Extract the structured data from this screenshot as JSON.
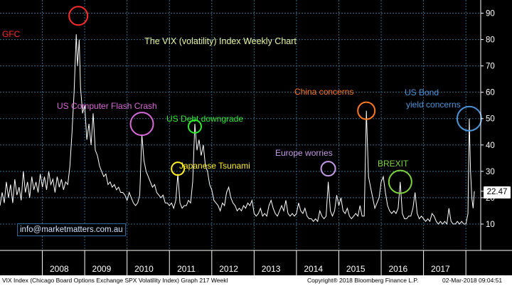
{
  "chart_data": {
    "type": "line",
    "title": "The VIX (volatility) Index Weekly Chart",
    "x_axis_labels": [
      "2008",
      "2009",
      "2010",
      "2011",
      "2012",
      "2013",
      "2014",
      "2015",
      "2016",
      "2017"
    ],
    "y_ticks": [
      10,
      20,
      30,
      40,
      50,
      60,
      70,
      80,
      90
    ],
    "ylim": [
      0,
      95
    ],
    "grid": true,
    "series": [
      {
        "values": [
          [
            2007.0,
            17
          ],
          [
            2007.05,
            22
          ],
          [
            2007.1,
            18
          ],
          [
            2007.15,
            26
          ],
          [
            2007.2,
            20
          ],
          [
            2007.25,
            25
          ],
          [
            2007.3,
            18
          ],
          [
            2007.35,
            27
          ],
          [
            2007.4,
            21
          ],
          [
            2007.45,
            24
          ],
          [
            2007.5,
            19
          ],
          [
            2007.55,
            30
          ],
          [
            2007.6,
            22
          ],
          [
            2007.65,
            26
          ],
          [
            2007.7,
            20
          ],
          [
            2007.75,
            28
          ],
          [
            2007.8,
            23
          ],
          [
            2007.85,
            26
          ],
          [
            2007.9,
            22
          ],
          [
            2007.95,
            29
          ],
          [
            2008.0,
            24
          ],
          [
            2008.05,
            28
          ],
          [
            2008.1,
            23
          ],
          [
            2008.15,
            30
          ],
          [
            2008.2,
            25
          ],
          [
            2008.25,
            27
          ],
          [
            2008.3,
            22
          ],
          [
            2008.35,
            28
          ],
          [
            2008.4,
            24
          ],
          [
            2008.45,
            27
          ],
          [
            2008.5,
            23
          ],
          [
            2008.55,
            26
          ],
          [
            2008.6,
            25
          ],
          [
            2008.65,
            32
          ],
          [
            2008.7,
            45
          ],
          [
            2008.75,
            60
          ],
          [
            2008.8,
            82
          ],
          [
            2008.83,
            70
          ],
          [
            2008.87,
            80
          ],
          [
            2008.9,
            62
          ],
          [
            2008.95,
            52
          ],
          [
            2009.0,
            55
          ],
          [
            2009.05,
            42
          ],
          [
            2009.1,
            48
          ],
          [
            2009.15,
            40
          ],
          [
            2009.2,
            52
          ],
          [
            2009.25,
            38
          ],
          [
            2009.3,
            36
          ],
          [
            2009.35,
            32
          ],
          [
            2009.4,
            30
          ],
          [
            2009.45,
            28
          ],
          [
            2009.5,
            29
          ],
          [
            2009.55,
            25
          ],
          [
            2009.6,
            26
          ],
          [
            2009.65,
            24
          ],
          [
            2009.7,
            25
          ],
          [
            2009.75,
            23
          ],
          [
            2009.8,
            24
          ],
          [
            2009.85,
            22
          ],
          [
            2009.9,
            22
          ],
          [
            2009.95,
            21
          ],
          [
            2010.0,
            19
          ],
          [
            2010.05,
            22
          ],
          [
            2010.1,
            20
          ],
          [
            2010.15,
            18
          ],
          [
            2010.2,
            17
          ],
          [
            2010.25,
            18
          ],
          [
            2010.3,
            21
          ],
          [
            2010.35,
            44
          ],
          [
            2010.4,
            34
          ],
          [
            2010.45,
            30
          ],
          [
            2010.5,
            28
          ],
          [
            2010.55,
            26
          ],
          [
            2010.6,
            24
          ],
          [
            2010.65,
            25
          ],
          [
            2010.7,
            22
          ],
          [
            2010.75,
            21
          ],
          [
            2010.8,
            20
          ],
          [
            2010.85,
            21
          ],
          [
            2010.9,
            18
          ],
          [
            2010.95,
            18
          ],
          [
            2011.0,
            17
          ],
          [
            2011.05,
            18
          ],
          [
            2011.1,
            16
          ],
          [
            2011.15,
            19
          ],
          [
            2011.2,
            29
          ],
          [
            2011.25,
            18
          ],
          [
            2011.3,
            16
          ],
          [
            2011.35,
            17
          ],
          [
            2011.4,
            17
          ],
          [
            2011.45,
            19
          ],
          [
            2011.5,
            18
          ],
          [
            2011.55,
            26
          ],
          [
            2011.6,
            48
          ],
          [
            2011.65,
            38
          ],
          [
            2011.7,
            42
          ],
          [
            2011.75,
            36
          ],
          [
            2011.8,
            40
          ],
          [
            2011.85,
            32
          ],
          [
            2011.9,
            30
          ],
          [
            2011.95,
            25
          ],
          [
            2012.0,
            23
          ],
          [
            2012.05,
            19
          ],
          [
            2012.1,
            18
          ],
          [
            2012.15,
            17
          ],
          [
            2012.2,
            15
          ],
          [
            2012.25,
            18
          ],
          [
            2012.3,
            17
          ],
          [
            2012.35,
            22
          ],
          [
            2012.4,
            24
          ],
          [
            2012.45,
            20
          ],
          [
            2012.5,
            18
          ],
          [
            2012.55,
            17
          ],
          [
            2012.6,
            15
          ],
          [
            2012.65,
            16
          ],
          [
            2012.7,
            15
          ],
          [
            2012.75,
            17
          ],
          [
            2012.8,
            16
          ],
          [
            2012.85,
            18
          ],
          [
            2012.9,
            17
          ],
          [
            2012.95,
            19
          ],
          [
            2013.0,
            14
          ],
          [
            2013.05,
            13
          ],
          [
            2013.1,
            14
          ],
          [
            2013.15,
            16
          ],
          [
            2013.2,
            13
          ],
          [
            2013.25,
            14
          ],
          [
            2013.3,
            13
          ],
          [
            2013.35,
            17
          ],
          [
            2013.4,
            19
          ],
          [
            2013.45,
            16
          ],
          [
            2013.5,
            14
          ],
          [
            2013.55,
            13
          ],
          [
            2013.6,
            15
          ],
          [
            2013.65,
            17
          ],
          [
            2013.7,
            15
          ],
          [
            2013.75,
            19
          ],
          [
            2013.8,
            14
          ],
          [
            2013.85,
            13
          ],
          [
            2013.9,
            14
          ],
          [
            2013.95,
            13
          ],
          [
            2014.0,
            14
          ],
          [
            2014.05,
            18
          ],
          [
            2014.1,
            15
          ],
          [
            2014.15,
            14
          ],
          [
            2014.2,
            16
          ],
          [
            2014.25,
            13
          ],
          [
            2014.3,
            12
          ],
          [
            2014.35,
            12
          ],
          [
            2014.4,
            11
          ],
          [
            2014.45,
            12
          ],
          [
            2014.5,
            11
          ],
          [
            2014.55,
            15
          ],
          [
            2014.6,
            13
          ],
          [
            2014.65,
            12
          ],
          [
            2014.7,
            13
          ],
          [
            2014.75,
            26
          ],
          [
            2014.8,
            15
          ],
          [
            2014.85,
            13
          ],
          [
            2014.9,
            15
          ],
          [
            2014.95,
            21
          ],
          [
            2015.0,
            17
          ],
          [
            2015.05,
            20
          ],
          [
            2015.1,
            15
          ],
          [
            2015.15,
            14
          ],
          [
            2015.2,
            16
          ],
          [
            2015.25,
            13
          ],
          [
            2015.3,
            12
          ],
          [
            2015.35,
            13
          ],
          [
            2015.4,
            14
          ],
          [
            2015.45,
            13
          ],
          [
            2015.5,
            17
          ],
          [
            2015.55,
            13
          ],
          [
            2015.6,
            13
          ],
          [
            2015.65,
            53
          ],
          [
            2015.7,
            28
          ],
          [
            2015.75,
            24
          ],
          [
            2015.8,
            20
          ],
          [
            2015.85,
            16
          ],
          [
            2015.9,
            18
          ],
          [
            2015.95,
            20
          ],
          [
            2016.0,
            26
          ],
          [
            2016.05,
            28
          ],
          [
            2016.1,
            22
          ],
          [
            2016.15,
            17
          ],
          [
            2016.2,
            15
          ],
          [
            2016.25,
            14
          ],
          [
            2016.3,
            15
          ],
          [
            2016.35,
            14
          ],
          [
            2016.4,
            16
          ],
          [
            2016.45,
            26
          ],
          [
            2016.5,
            14
          ],
          [
            2016.55,
            12
          ],
          [
            2016.6,
            12
          ],
          [
            2016.65,
            13
          ],
          [
            2016.7,
            13
          ],
          [
            2016.75,
            16
          ],
          [
            2016.8,
            22
          ],
          [
            2016.85,
            14
          ],
          [
            2016.9,
            12
          ],
          [
            2016.95,
            13
          ],
          [
            2017.0,
            12
          ],
          [
            2017.05,
            11
          ],
          [
            2017.1,
            12
          ],
          [
            2017.15,
            11
          ],
          [
            2017.2,
            14
          ],
          [
            2017.25,
            13
          ],
          [
            2017.3,
            11
          ],
          [
            2017.35,
            10
          ],
          [
            2017.4,
            11
          ],
          [
            2017.45,
            10
          ],
          [
            2017.5,
            11
          ],
          [
            2017.55,
            10
          ],
          [
            2017.6,
            16
          ],
          [
            2017.65,
            11
          ],
          [
            2017.7,
            10
          ],
          [
            2017.75,
            10
          ],
          [
            2017.8,
            11
          ],
          [
            2017.85,
            10
          ],
          [
            2017.9,
            11
          ],
          [
            2017.95,
            10
          ],
          [
            2018.0,
            10
          ],
          [
            2018.05,
            14
          ],
          [
            2018.08,
            50
          ],
          [
            2018.11,
            30
          ],
          [
            2018.14,
            20
          ],
          [
            2018.17,
            16
          ],
          [
            2018.2,
            22.47
          ]
        ]
      }
    ],
    "last_value": "22.47",
    "annotations": [
      {
        "label": "GFC",
        "color": "#ff2a2a",
        "x": 2008.85,
        "y": 89
      },
      {
        "label": "US Computer Flash Crash",
        "color": "#d86ad8",
        "x": 2010.35,
        "y": 48
      },
      {
        "label": "US Debt downgrade",
        "color": "#2ee82e",
        "x": 2011.6,
        "y": 47
      },
      {
        "label": "Japanese Tsunami",
        "color": "#ffee22",
        "x": 2011.2,
        "y": 31
      },
      {
        "label": "Europe worries",
        "color": "#c59ae6",
        "x": 2014.75,
        "y": 31
      },
      {
        "label": "China concerns",
        "color": "#ff7722",
        "x": 2015.65,
        "y": 53
      },
      {
        "label": "BREXIT",
        "color": "#7dd33a",
        "x": 2016.45,
        "y": 26
      },
      {
        "label": "US Bond",
        "color": "#4f93d8",
        "x": 2018.08,
        "y": 50
      },
      {
        "label": "yield concerns",
        "color": "#4f93d8",
        "x": null,
        "y": null
      }
    ]
  },
  "contact": {
    "email": "info@marketmatters.com.au"
  },
  "footer": {
    "left": "VIX Index (Chicago Board Options Exchange SPX Volatility Index) Graph 217  Weekl",
    "center": "Copyright® 2018 Bloomberg Finance L.P.",
    "right": "02-Mar-2018 09:04:51"
  },
  "colors": {
    "background": "#000000",
    "line": "#ffffff",
    "grid": "#3a6b8c",
    "axis_text": "#ffffff",
    "title": "#e6f5a0"
  }
}
